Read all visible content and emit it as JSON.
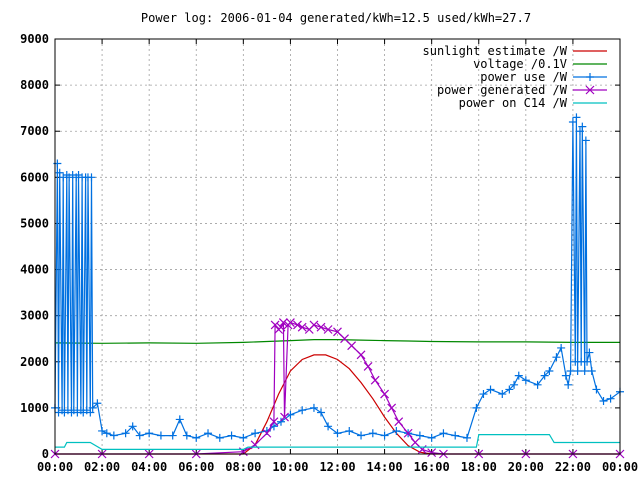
{
  "chart_data": {
    "type": "line",
    "title": "Power log: 2006-01-04 generated/kWh=12.5 used/kWh=27.7",
    "xlabel": "",
    "ylabel": "",
    "xlim": [
      0,
      24
    ],
    "ylim": [
      0,
      9000
    ],
    "grid": true,
    "legend_position": "top-right",
    "x_ticks": [
      "00:00",
      "02:00",
      "04:00",
      "06:00",
      "08:00",
      "10:00",
      "12:00",
      "14:00",
      "16:00",
      "18:00",
      "20:00",
      "22:00",
      "00:00"
    ],
    "y_ticks": [
      "0",
      "1000",
      "2000",
      "3000",
      "4000",
      "5000",
      "6000",
      "7000",
      "8000",
      "9000"
    ],
    "series": [
      {
        "name": "sunlight estimate /W",
        "color": "#cc0000",
        "marker": "none",
        "x": [
          0,
          8.0,
          8.5,
          9.0,
          9.5,
          10.0,
          10.5,
          11.0,
          11.5,
          12.0,
          12.5,
          13.0,
          13.5,
          14.0,
          14.5,
          15.0,
          15.5,
          16.0,
          24
        ],
        "y": [
          0,
          0,
          200,
          700,
          1300,
          1800,
          2050,
          2150,
          2150,
          2050,
          1850,
          1550,
          1200,
          800,
          450,
          180,
          40,
          0,
          0
        ]
      },
      {
        "name": "voltage /0.1V",
        "color": "#008800",
        "marker": "none",
        "x": [
          0,
          2,
          4,
          6,
          8,
          9,
          10,
          11,
          12,
          13,
          14,
          15,
          16,
          18,
          20,
          22,
          24
        ],
        "y": [
          2410,
          2400,
          2410,
          2400,
          2420,
          2440,
          2460,
          2480,
          2480,
          2470,
          2460,
          2450,
          2440,
          2430,
          2430,
          2420,
          2420
        ]
      },
      {
        "name": "power use /W",
        "color": "#0070e0",
        "marker": "plus",
        "x": [
          0.0,
          0.1,
          0.15,
          0.2,
          0.3,
          0.35,
          0.4,
          0.5,
          0.55,
          0.6,
          0.7,
          0.75,
          0.8,
          0.9,
          0.95,
          1.0,
          1.1,
          1.15,
          1.2,
          1.3,
          1.35,
          1.4,
          1.5,
          1.55,
          1.6,
          1.8,
          2.0,
          2.2,
          2.5,
          3.0,
          3.3,
          3.6,
          4.0,
          4.5,
          5.0,
          5.3,
          5.6,
          6.0,
          6.5,
          7.0,
          7.5,
          8.0,
          8.5,
          9.0,
          9.3,
          9.6,
          10.0,
          10.5,
          11.0,
          11.3,
          11.6,
          12.0,
          12.5,
          13.0,
          13.5,
          14.0,
          14.5,
          15.0,
          15.5,
          16.0,
          16.5,
          17.0,
          17.5,
          17.9,
          18.2,
          18.5,
          19.0,
          19.3,
          19.5,
          19.7,
          20.0,
          20.5,
          20.8,
          21.0,
          21.3,
          21.5,
          21.7,
          21.8,
          21.9,
          22.0,
          22.1,
          22.15,
          22.2,
          22.3,
          22.35,
          22.4,
          22.5,
          22.55,
          22.6,
          22.7,
          22.8,
          23.0,
          23.3,
          23.6,
          24.0
        ],
        "y": [
          1000,
          6300,
          900,
          6100,
          950,
          6000,
          900,
          6050,
          950,
          6000,
          900,
          6050,
          950,
          6000,
          900,
          6050,
          950,
          6000,
          900,
          6000,
          950,
          6000,
          900,
          6000,
          1000,
          1100,
          500,
          450,
          400,
          450,
          600,
          400,
          450,
          400,
          400,
          750,
          400,
          350,
          450,
          350,
          400,
          350,
          450,
          500,
          600,
          700,
          850,
          950,
          1000,
          900,
          600,
          450,
          500,
          400,
          450,
          400,
          500,
          450,
          400,
          350,
          450,
          400,
          350,
          1000,
          1300,
          1400,
          1300,
          1400,
          1500,
          1700,
          1600,
          1500,
          1700,
          1800,
          2100,
          2300,
          1700,
          1500,
          1800,
          7200,
          2000,
          7300,
          1800,
          7000,
          2000,
          7100,
          1800,
          6800,
          2000,
          2200,
          1800,
          1400,
          1150,
          1200,
          1350
        ]
      },
      {
        "name": "power generated /W",
        "color": "#a000c0",
        "marker": "cross",
        "x": [
          0,
          2,
          4,
          6,
          8.0,
          8.5,
          9.0,
          9.3,
          9.35,
          9.5,
          9.6,
          9.7,
          9.75,
          9.9,
          10.0,
          10.3,
          10.5,
          10.8,
          11.0,
          11.3,
          11.6,
          12.0,
          12.3,
          12.6,
          13.0,
          13.3,
          13.6,
          14.0,
          14.3,
          14.6,
          15.0,
          15.3,
          15.6,
          16.0,
          16.5,
          18,
          20,
          22,
          24
        ],
        "y": [
          0,
          0,
          0,
          0,
          50,
          200,
          450,
          700,
          2800,
          2700,
          2750,
          2850,
          800,
          2800,
          2850,
          2800,
          2750,
          2700,
          2800,
          2750,
          2700,
          2650,
          2500,
          2350,
          2150,
          1900,
          1600,
          1300,
          1000,
          700,
          450,
          250,
          100,
          30,
          0,
          0,
          0,
          0,
          0
        ]
      },
      {
        "name": "power on C14 /W",
        "color": "#00c0c0",
        "marker": "none",
        "x": [
          0,
          0.4,
          0.5,
          1.5,
          2.0,
          8.0,
          8.2,
          17.9,
          18.0,
          21.0,
          21.2,
          24
        ],
        "y": [
          150,
          150,
          250,
          250,
          100,
          100,
          150,
          150,
          420,
          420,
          250,
          250
        ]
      }
    ]
  }
}
